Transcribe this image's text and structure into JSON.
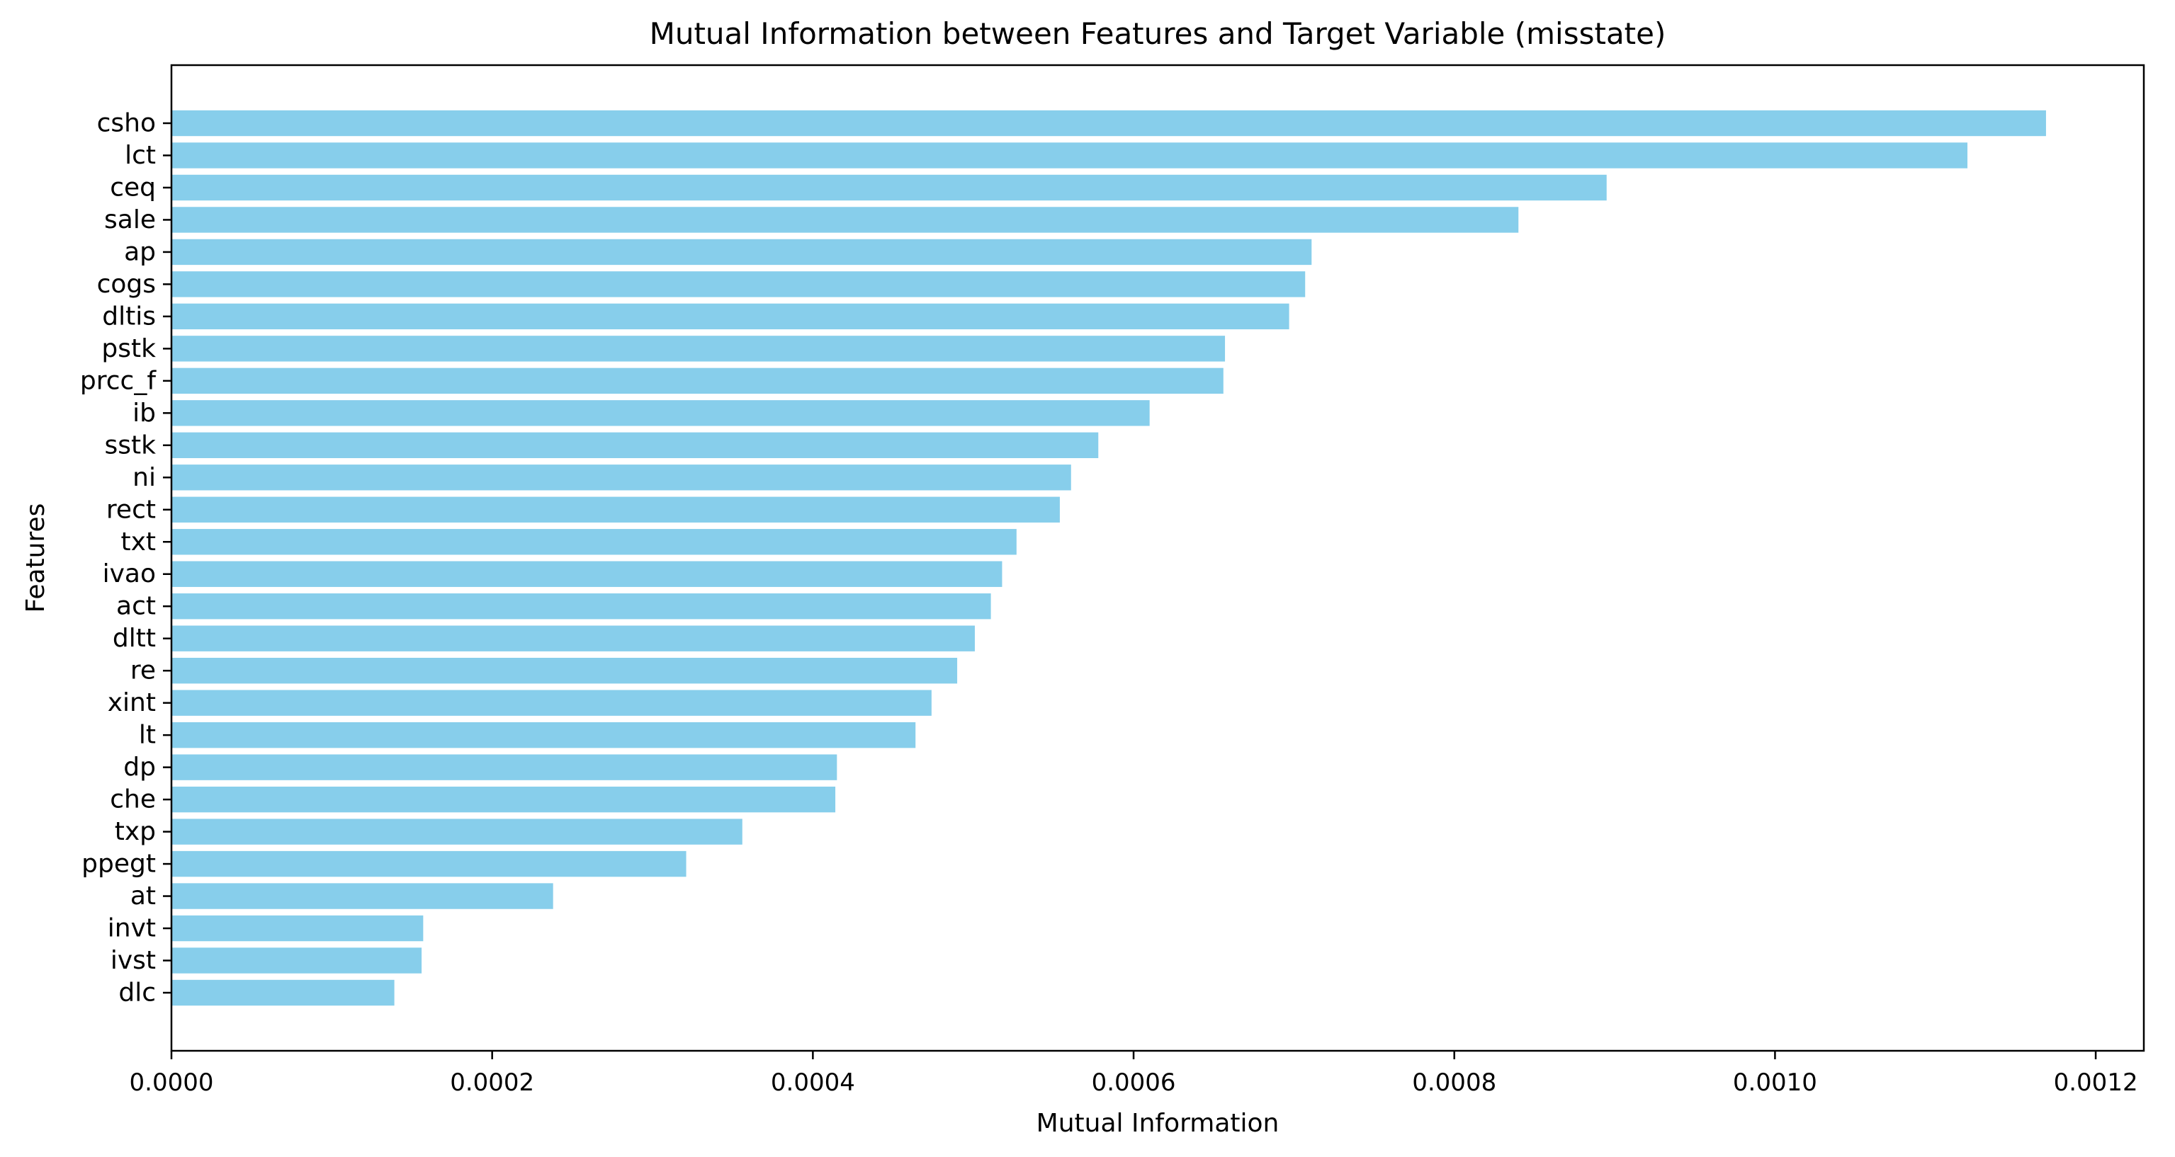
{
  "chart_data": {
    "type": "bar",
    "orientation": "horizontal",
    "title": "Mutual Information between Features and Target Variable (misstate)",
    "xlabel": "Mutual Information",
    "ylabel": "Features",
    "xlim": [
      0,
      0.00123
    ],
    "xticks": [
      0,
      0.0002,
      0.0004,
      0.0006,
      0.0008,
      0.001,
      0.0012
    ],
    "xtick_labels": [
      "0.0000",
      "0.0002",
      "0.0004",
      "0.0006",
      "0.0008",
      "0.0010",
      "0.0012"
    ],
    "grid": false,
    "bar_color": "#87CEEB",
    "categories": [
      "csho",
      "lct",
      "ceq",
      "sale",
      "ap",
      "cogs",
      "dltis",
      "pstk",
      "prcc_f",
      "ib",
      "sstk",
      "ni",
      "rect",
      "txt",
      "ivao",
      "act",
      "dltt",
      "re",
      "xint",
      "lt",
      "dp",
      "che",
      "txp",
      "ppegt",
      "at",
      "invt",
      "ivst",
      "dlc"
    ],
    "values": [
      0.001169,
      0.00112,
      0.000895,
      0.00084,
      0.000711,
      0.000707,
      0.000697,
      0.000657,
      0.000656,
      0.00061,
      0.000578,
      0.000561,
      0.000554,
      0.000527,
      0.000518,
      0.000511,
      0.000501,
      0.00049,
      0.000474,
      0.000464,
      0.000415,
      0.000414,
      0.000356,
      0.000321,
      0.000238,
      0.000157,
      0.000156,
      0.000139
    ]
  }
}
